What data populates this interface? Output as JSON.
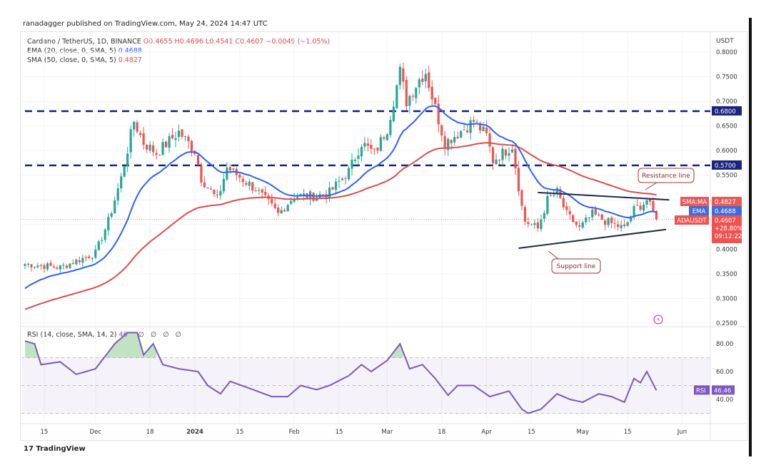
{
  "header": {
    "published": "ranadagger published on TradingView.com, May 24, 2024 14:47 UTC"
  },
  "legend": {
    "symbol": "Cardano / TetherUS, 1D, BINANCE",
    "ohlc": "O0.4655  H0.4696  L0.4541  C0.4607  −0.0049 (−1.05%)",
    "ema_label": "EMA (20, close, 0, SMA, 5)",
    "ema_value": "0.4688",
    "sma_label": "SMA (50, close, 0, SMA, 5)",
    "sma_value": "0.4827",
    "rsi_label": "RSI (14, close, SMA, 14, 2)",
    "rsi_value": "46",
    "rsi_extra": "∅ ∅ ∅ ∅"
  },
  "axis": {
    "currency": "USDT"
  },
  "badges": {
    "sma": {
      "name": "SMA:MA",
      "value": "0.4827"
    },
    "ema": {
      "name": "EMA",
      "value": "0.4688"
    },
    "price": {
      "name": "ADAUSDT",
      "value": "0.4607",
      "change": "+28.80%",
      "countdown": "09:12:22"
    },
    "rsi": {
      "name": "RSI",
      "value": "46.46"
    },
    "level_high": "0.6800",
    "level_low": "0.5700"
  },
  "annotations": {
    "resistance": "Resistance line",
    "support": "Support line"
  },
  "footer": {
    "brand": "TradingView"
  },
  "colors": {
    "up": "#26a69a",
    "down": "#ef5350",
    "ema": "#2962ff",
    "sma": "#e04a4a",
    "rsi": "#7e57c2",
    "level": "#1a237e"
  },
  "chart_data": {
    "type": "candlestick",
    "interval": "1D",
    "y_ticks": [
      "0.8000",
      "0.7500",
      "0.7000",
      "0.6500",
      "0.6000",
      "0.5500",
      "0.4000",
      "0.3500",
      "0.3000",
      "0.2500"
    ],
    "ylim": [
      0.25,
      0.8
    ],
    "x_ticks": [
      [
        "2023-11-15",
        "15"
      ],
      [
        "2023-12-01",
        "Dec"
      ],
      [
        "2023-12-18",
        "18"
      ],
      [
        "2024-01-01",
        "2024"
      ],
      [
        "2024-01-15",
        "15"
      ],
      [
        "2024-02-01",
        "Feb"
      ],
      [
        "2024-02-15",
        "15"
      ],
      [
        "2024-03-01",
        "Mar"
      ],
      [
        "2024-03-18",
        "18"
      ],
      [
        "2024-04-01",
        "Apr"
      ],
      [
        "2024-04-15",
        "15"
      ],
      [
        "2024-05-01",
        "May"
      ],
      [
        "2024-05-15",
        "15"
      ],
      [
        "2024-06-01",
        "Jun"
      ]
    ],
    "close_keypoints": [
      [
        "2023-11-09",
        0.37
      ],
      [
        "2023-11-20",
        0.363
      ],
      [
        "2023-12-01",
        0.392
      ],
      [
        "2023-12-05",
        0.457
      ],
      [
        "2023-12-09",
        0.544
      ],
      [
        "2023-12-13",
        0.66
      ],
      [
        "2023-12-16",
        0.616
      ],
      [
        "2023-12-20",
        0.595
      ],
      [
        "2023-12-27",
        0.638
      ],
      [
        "2024-01-01",
        0.6
      ],
      [
        "2024-01-03",
        0.544
      ],
      [
        "2024-01-08",
        0.5
      ],
      [
        "2024-01-11",
        0.566
      ],
      [
        "2024-01-20",
        0.522
      ],
      [
        "2024-01-27",
        0.471
      ],
      [
        "2024-02-01",
        0.508
      ],
      [
        "2024-02-08",
        0.508
      ],
      [
        "2024-02-12",
        0.515
      ],
      [
        "2024-02-18",
        0.558
      ],
      [
        "2024-02-22",
        0.616
      ],
      [
        "2024-02-26",
        0.594
      ],
      [
        "2024-03-01",
        0.645
      ],
      [
        "2024-03-05",
        0.76
      ],
      [
        "2024-03-07",
        0.7
      ],
      [
        "2024-03-11",
        0.745
      ],
      [
        "2024-03-13",
        0.76
      ],
      [
        "2024-03-15",
        0.71
      ],
      [
        "2024-03-19",
        0.616
      ],
      [
        "2024-03-22",
        0.63
      ],
      [
        "2024-03-28",
        0.66
      ],
      [
        "2024-04-01",
        0.63
      ],
      [
        "2024-04-03",
        0.58
      ],
      [
        "2024-04-09",
        0.61
      ],
      [
        "2024-04-12",
        0.486
      ],
      [
        "2024-04-13",
        0.457
      ],
      [
        "2024-04-17",
        0.442
      ],
      [
        "2024-04-20",
        0.5
      ],
      [
        "2024-04-23",
        0.515
      ],
      [
        "2024-04-26",
        0.471
      ],
      [
        "2024-04-30",
        0.442
      ],
      [
        "2024-05-04",
        0.471
      ],
      [
        "2024-05-08",
        0.457
      ],
      [
        "2024-05-14",
        0.442
      ],
      [
        "2024-05-17",
        0.48
      ],
      [
        "2024-05-20",
        0.493
      ],
      [
        "2024-05-21",
        0.5
      ],
      [
        "2024-05-24",
        0.4607
      ]
    ],
    "levels": [
      0.68,
      0.57
    ],
    "resistance_line": [
      [
        "2024-04-17",
        0.515
      ],
      [
        "2024-05-28",
        0.5
      ]
    ],
    "support_line": [
      [
        "2024-04-11",
        0.402
      ],
      [
        "2024-05-27",
        0.44
      ]
    ],
    "rsi": {
      "ylim": [
        25,
        92
      ],
      "y_ticks": [
        "80.00",
        "60.00",
        "40.00"
      ],
      "band": [
        30,
        70
      ],
      "keypoints": [
        [
          "2023-11-09",
          82
        ],
        [
          "2023-11-12",
          80
        ],
        [
          "2023-11-14",
          65
        ],
        [
          "2023-11-20",
          67
        ],
        [
          "2023-11-25",
          58
        ],
        [
          "2023-12-01",
          62
        ],
        [
          "2023-12-07",
          80
        ],
        [
          "2023-12-11",
          88
        ],
        [
          "2023-12-14",
          88
        ],
        [
          "2023-12-16",
          72
        ],
        [
          "2023-12-19",
          80
        ],
        [
          "2023-12-22",
          65
        ],
        [
          "2023-12-27",
          62
        ],
        [
          "2024-01-02",
          60
        ],
        [
          "2024-01-05",
          50
        ],
        [
          "2024-01-09",
          44
        ],
        [
          "2024-01-12",
          53
        ],
        [
          "2024-01-18",
          48
        ],
        [
          "2024-01-25",
          42
        ],
        [
          "2024-01-30",
          42
        ],
        [
          "2024-02-03",
          50
        ],
        [
          "2024-02-08",
          47
        ],
        [
          "2024-02-12",
          50
        ],
        [
          "2024-02-18",
          57
        ],
        [
          "2024-02-22",
          65
        ],
        [
          "2024-02-25",
          60
        ],
        [
          "2024-03-01",
          68
        ],
        [
          "2024-03-05",
          80
        ],
        [
          "2024-03-08",
          62
        ],
        [
          "2024-03-12",
          65
        ],
        [
          "2024-03-16",
          55
        ],
        [
          "2024-03-20",
          43
        ],
        [
          "2024-03-23",
          50
        ],
        [
          "2024-03-28",
          50
        ],
        [
          "2024-04-02",
          42
        ],
        [
          "2024-04-08",
          46
        ],
        [
          "2024-04-12",
          33
        ],
        [
          "2024-04-14",
          30
        ],
        [
          "2024-04-18",
          33
        ],
        [
          "2024-04-23",
          44
        ],
        [
          "2024-04-27",
          40
        ],
        [
          "2024-05-01",
          38
        ],
        [
          "2024-05-06",
          44
        ],
        [
          "2024-05-10",
          42
        ],
        [
          "2024-05-14",
          38
        ],
        [
          "2024-05-17",
          55
        ],
        [
          "2024-05-19",
          52
        ],
        [
          "2024-05-21",
          60
        ],
        [
          "2024-05-24",
          46.46
        ]
      ]
    }
  }
}
